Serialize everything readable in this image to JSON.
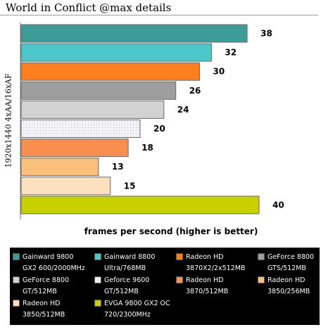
{
  "chart_data": {
    "type": "bar",
    "orientation": "horizontal",
    "title": "World in Conflict @max details",
    "ylabel": "1920x1440 4xAA/16xAF",
    "xlabel": "frames per second (higher is better)",
    "xlim": [
      0,
      42
    ],
    "legend_position": "bottom",
    "grid": false,
    "series": [
      {
        "name": "Gainward 9800 GX2 600/2000MHz",
        "value": 38,
        "color": "#3d9b98"
      },
      {
        "name": "Gainward 8800 Ultra/768MB",
        "value": 32,
        "color": "#4cc8cc"
      },
      {
        "name": "Radeon HD 3870X2/2x512MB",
        "value": 30,
        "color": "#ff7f1e"
      },
      {
        "name": "GeForce 8800 GTS/512MB",
        "value": 26,
        "color": "#9e9e9e"
      },
      {
        "name": "GeForce 8800 GT/512MB",
        "value": 24,
        "color": "#d2d2d2"
      },
      {
        "name": "Geforce 9600 GT/512MB",
        "value": 20,
        "color": "#f0eef4",
        "pattern": "dotted"
      },
      {
        "name": "Radeon HD 3870/512MB",
        "value": 18,
        "color": "#f98f4e"
      },
      {
        "name": "Radeon HD 3850/256MB",
        "value": 13,
        "color": "#fbbf7c"
      },
      {
        "name": "Radeon HD 3850/512MB",
        "value": 15,
        "color": "#fde0bd"
      },
      {
        "name": "EVGA 9800 GX2 OC 720/2300MHz",
        "value": 40,
        "color": "#c8d000"
      }
    ]
  },
  "legend": [
    {
      "line1": "Gainward 9800",
      "line2": "GX2 600/2000MHz",
      "color": "#3d9b98"
    },
    {
      "line1": "Gainward 8800",
      "line2": "Ultra/768MB",
      "color": "#4cc8cc"
    },
    {
      "line1": "Radeon HD",
      "line2": "3870X2/2x512MB",
      "color": "#ff7f1e"
    },
    {
      "line1": "GeForce 8800",
      "line2": "GTS/512MB",
      "color": "#9e9e9e"
    },
    {
      "line1": "GeForce 8800",
      "line2": "GT/512MB",
      "color": "#d2d2d2"
    },
    {
      "line1": "Geforce 9600",
      "line2": "GT/512MB",
      "color": "#f0eef4"
    },
    {
      "line1": "Radeon HD",
      "line2": "3870/512MB",
      "color": "#f98f4e"
    },
    {
      "line1": "Radeon HD",
      "line2": "3850/256MB",
      "color": "#fbbf7c"
    },
    {
      "line1": "Radeon HD",
      "line2": "3850/512MB",
      "color": "#fde0bd"
    },
    {
      "line1": "EVGA 9800 GX2 OC",
      "line2": "720/2300MHz",
      "color": "#c8d000"
    }
  ]
}
